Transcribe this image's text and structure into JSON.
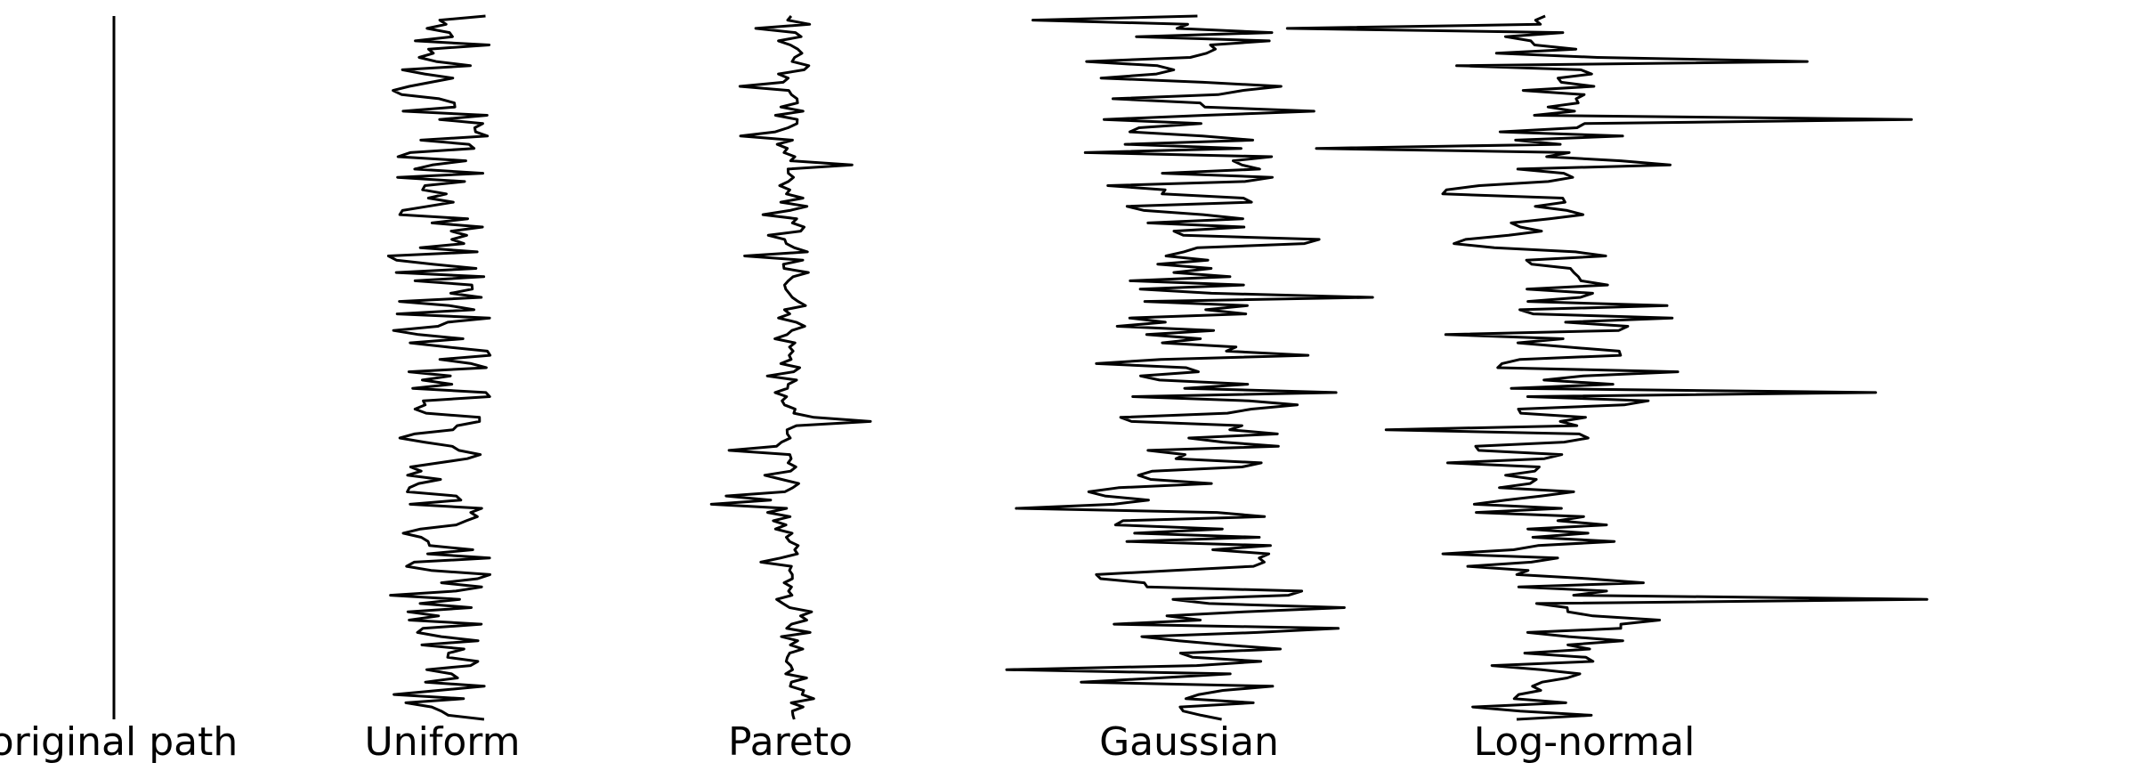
{
  "panels": [
    {
      "id": "original",
      "label": "original path",
      "noise": "none"
    },
    {
      "id": "uniform",
      "label": "Uniform",
      "noise": "uniform"
    },
    {
      "id": "pareto",
      "label": "Pareto",
      "noise": "pareto"
    },
    {
      "id": "gaussian",
      "label": "Gaussian",
      "noise": "gaussian"
    },
    {
      "id": "lognormal",
      "label": "Log-normal",
      "noise": "lognormal"
    }
  ],
  "colors": {
    "stroke": "#000000",
    "background": "#ffffff"
  }
}
